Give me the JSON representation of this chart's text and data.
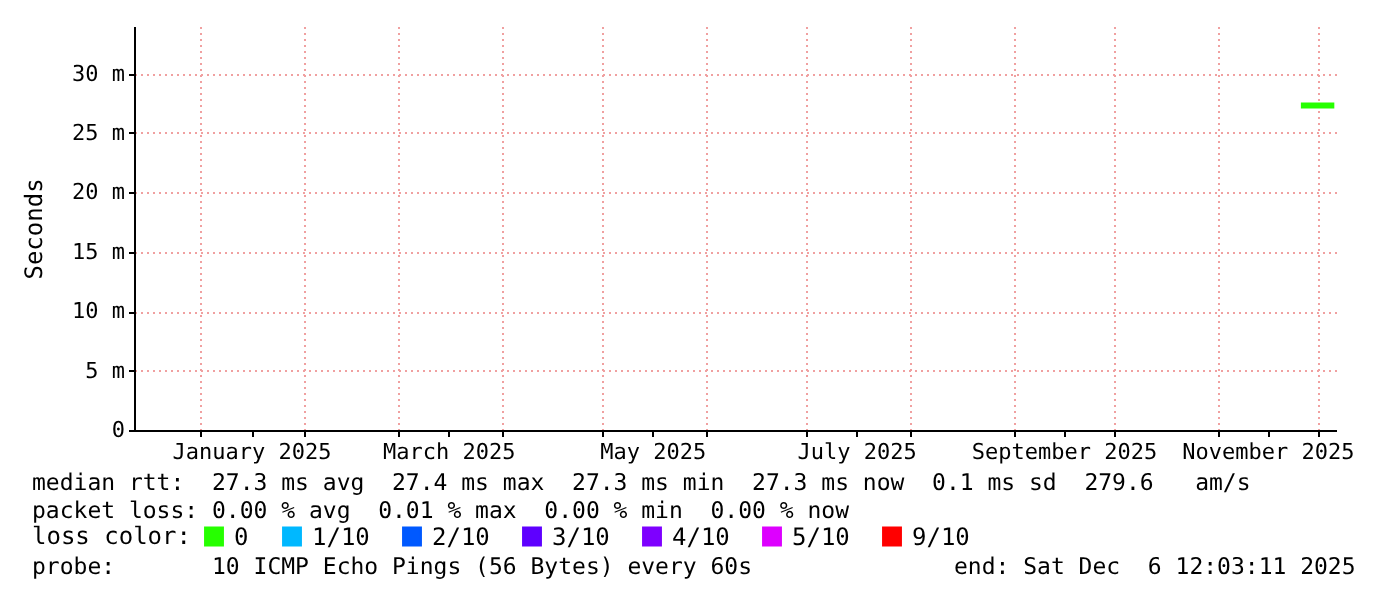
{
  "chart_data": {
    "type": "line",
    "ylabel": "Seconds",
    "legend_title": "loss color:",
    "xlim": [
      "2024-12-12",
      "2025-12-06T12:03"
    ],
    "xticks": [
      {
        "value": "2025-01-01",
        "label": null
      },
      {
        "value": "2025-01-16",
        "label": "January 2025"
      },
      {
        "value": "2025-02-01",
        "label": null
      },
      {
        "value": "2025-03-01",
        "label": null
      },
      {
        "value": "2025-03-16",
        "label": "March 2025"
      },
      {
        "value": "2025-04-01",
        "label": null
      },
      {
        "value": "2025-05-01",
        "label": null
      },
      {
        "value": "2025-05-16",
        "label": "May 2025"
      },
      {
        "value": "2025-06-01",
        "label": null
      },
      {
        "value": "2025-07-01",
        "label": null
      },
      {
        "value": "2025-07-16",
        "label": "July 2025"
      },
      {
        "value": "2025-08-01",
        "label": null
      },
      {
        "value": "2025-09-01",
        "label": null
      },
      {
        "value": "2025-09-16",
        "label": "September 2025"
      },
      {
        "value": "2025-10-01",
        "label": null
      },
      {
        "value": "2025-11-01",
        "label": null
      },
      {
        "value": "2025-11-16",
        "label": "November 2025"
      },
      {
        "value": "2025-12-01",
        "label": null
      }
    ],
    "ylim": [
      0,
      34
    ],
    "yticks": [
      0,
      {
        "value": 5,
        "label": "5 m"
      },
      {
        "value": 10,
        "label": "10 m"
      },
      {
        "value": 15,
        "label": "15 m"
      },
      {
        "value": 20,
        "label": "20 m"
      },
      {
        "value": 25,
        "label": "25 m"
      },
      {
        "value": 30,
        "label": "30 m"
      }
    ],
    "grid": true,
    "legend": "bottom",
    "line_style": "solid",
    "series": [
      {
        "name": "0",
        "color": "#26ff00",
        "x": [
          "2025-11-26",
          "2025-11-29",
          "2025-12-02",
          "2025-12-06"
        ],
        "values": [
          27.3,
          27.3,
          27.3,
          27.3
        ]
      },
      {
        "name": "1/10",
        "color": "#00b8ff"
      },
      {
        "name": "2/10",
        "color": "#0059ff"
      },
      {
        "name": "3/10",
        "color": "#5e00ff"
      },
      {
        "name": "4/10",
        "color": "#7e00ff"
      },
      {
        "name": "5/10",
        "color": "#dd00ff"
      },
      {
        "name": "9/10",
        "color": "#ff0000"
      }
    ],
    "annotations": [
      "median rtt:  27.3 ms avg  27.4 ms max  27.3 ms min  27.3 ms now  0.1 ms sd  279.6   am/s",
      "packet loss: 0.00 % avg  0.01 % max  0.00 % min  0.00 % now",
      "probe:       10 ICMP Echo Pings (56 Bytes) every 60s",
      "end: Sat Dec  6 12:03:11 2025"
    ]
  }
}
